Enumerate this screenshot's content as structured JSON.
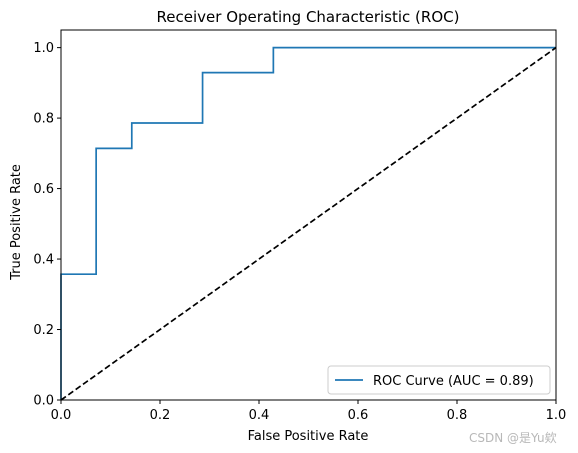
{
  "chart_data": {
    "type": "line",
    "title": "Receiver Operating Characteristic (ROC)",
    "xlabel": "False Positive Rate",
    "ylabel": "True Positive Rate",
    "xlim": [
      0.0,
      1.0
    ],
    "ylim": [
      0.0,
      1.05
    ],
    "xticks": [
      "0.0",
      "0.2",
      "0.4",
      "0.6",
      "0.8",
      "1.0"
    ],
    "yticks": [
      "0.0",
      "0.2",
      "0.4",
      "0.6",
      "0.8",
      "1.0"
    ],
    "grid": false,
    "legend_position": "lower-right",
    "series": [
      {
        "name": "ROC Curve (AUC = 0.89)",
        "color": "#1f77b4",
        "style": "solid",
        "x": [
          0.0,
          0.0,
          0.071,
          0.071,
          0.143,
          0.143,
          0.286,
          0.286,
          0.429,
          0.429,
          1.0
        ],
        "y": [
          0.0,
          0.357,
          0.357,
          0.714,
          0.714,
          0.786,
          0.786,
          0.929,
          0.929,
          1.0,
          1.0
        ]
      },
      {
        "name": "",
        "color": "#000000",
        "style": "dashed",
        "x": [
          0.0,
          1.0
        ],
        "y": [
          0.0,
          1.0
        ]
      }
    ]
  },
  "watermark": "CSDN @是Yu欸"
}
